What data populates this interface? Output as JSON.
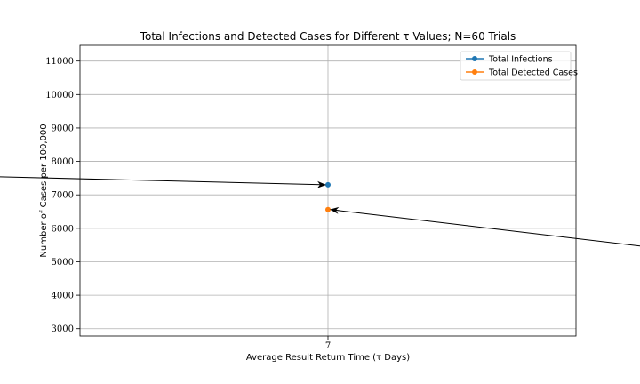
{
  "chart_data": {
    "type": "scatter",
    "title": "Total Infections and Detected Cases for Different τ Values; N=60 Trials",
    "xlabel": "Average Result Return Time (τ Days)",
    "ylabel": "Number of Cases per 100,000",
    "xlim": [
      6.9,
      7.1
    ],
    "ylim": [
      2780,
      11470
    ],
    "x_ticks": [
      7
    ],
    "x_tick_labels": [
      "7"
    ],
    "y_ticks": [
      3000,
      4000,
      5000,
      6000,
      7000,
      8000,
      9000,
      10000,
      11000
    ],
    "y_tick_labels": [
      "3000",
      "4000",
      "5000",
      "6000",
      "7000",
      "8000",
      "9000",
      "10000",
      "11000"
    ],
    "grid": true,
    "legend_position": "top-right",
    "series": [
      {
        "name": "Total Infections",
        "color": "#1f77b4",
        "x": [
          7
        ],
        "y": [
          7300
        ]
      },
      {
        "name": "Total Detected Cases",
        "color": "#ff7f0e",
        "x": [
          7
        ],
        "y": [
          6560
        ]
      }
    ],
    "annotations": [
      {
        "text": "",
        "target_series": 0,
        "arrow": true,
        "arrow_from": "left"
      },
      {
        "text": "",
        "target_series": 1,
        "arrow": true,
        "arrow_from": "right"
      }
    ]
  }
}
